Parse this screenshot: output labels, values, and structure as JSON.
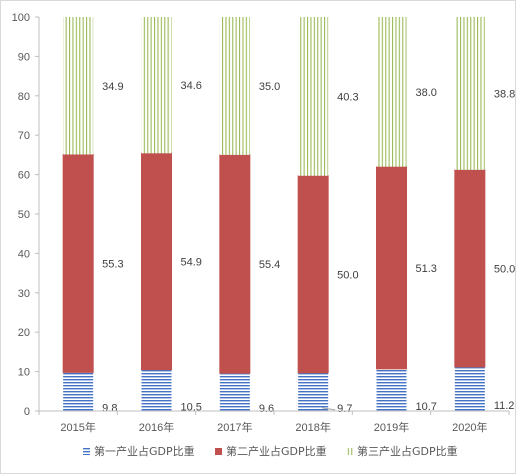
{
  "chart_data": {
    "type": "bar",
    "stacked": true,
    "categories": [
      "2015年",
      "2016年",
      "2017年",
      "2018年",
      "2019年",
      "2020年"
    ],
    "series": [
      {
        "name": "第一产业占GDP比重",
        "values": [
          9.8,
          10.5,
          9.6,
          9.7,
          10.7,
          11.2
        ],
        "color": "#4472c4",
        "pattern": "horizontal-lines"
      },
      {
        "name": "第二产业占GDP比重",
        "values": [
          55.3,
          54.9,
          55.4,
          50.0,
          51.3,
          50.0
        ],
        "color": "#c0504d",
        "pattern": "solid"
      },
      {
        "name": "第三产业占GDP比重",
        "values": [
          34.9,
          34.6,
          35.0,
          40.3,
          38.0,
          38.8
        ],
        "color": "#9bbb59",
        "pattern": "vertical-lines"
      }
    ],
    "data_labels": {
      "第一产业占GDP比重": [
        "9.8",
        "10.5",
        "9.6",
        "9.7",
        "10.7",
        "11.2"
      ],
      "第二产业占GDP比重": [
        "55.3",
        "54.9",
        "55.4",
        "50.0",
        "51.3",
        "50.0"
      ],
      "第三产业占GDP比重": [
        "34.9",
        "34.6",
        "35.0",
        "40.3",
        "38.0",
        "38.8"
      ]
    },
    "ylim": [
      0,
      100
    ],
    "yticks": [
      "0",
      "10",
      "20",
      "30",
      "40",
      "50",
      "60",
      "70",
      "80",
      "90",
      "100"
    ],
    "grid": false,
    "legend_position": "bottom"
  }
}
